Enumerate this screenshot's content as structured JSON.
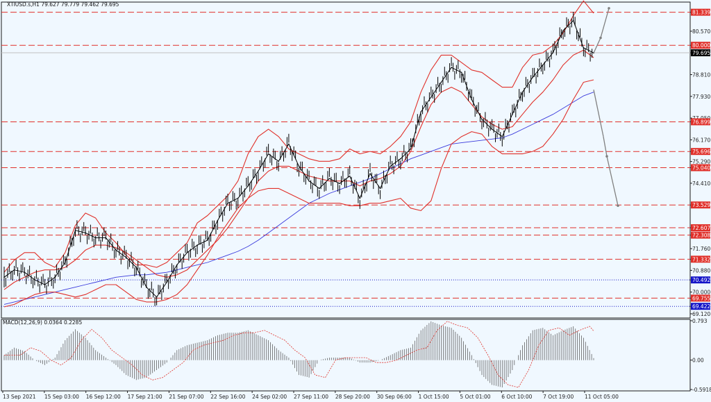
{
  "header": {
    "symbol_line": "XTIUSD.s,H1  79.627 79.779 79.462 79.695"
  },
  "macd": {
    "label": "MACD(12,26,9) 0.0364 0.2285",
    "ticks": [
      {
        "v": 0.793,
        "label": "0.793"
      },
      {
        "v": 0.0,
        "label": "0.00"
      },
      {
        "v": -0.5918,
        "label": "-0.5918"
      }
    ],
    "ylim": [
      -0.62,
      0.82
    ]
  },
  "price_axis": {
    "ylim": [
      68.95,
      81.75
    ],
    "ticks": [
      {
        "v": 81.339,
        "label": "81.339",
        "badge": "#e0302a"
      },
      {
        "v": 80.57,
        "label": "80.570"
      },
      {
        "v": 80.0,
        "label": "80.000",
        "badge": "#e0302a"
      },
      {
        "v": 79.695,
        "label": "79.695",
        "badge": "#000000"
      },
      {
        "v": 78.81,
        "label": "78.810"
      },
      {
        "v": 77.93,
        "label": "77.930"
      },
      {
        "v": 77.05,
        "label": "77.050"
      },
      {
        "v": 76.899,
        "label": "76.899",
        "badge": "#e0302a"
      },
      {
        "v": 76.17,
        "label": "76.170"
      },
      {
        "v": 75.696,
        "label": "75.696",
        "badge": "#e0302a"
      },
      {
        "v": 75.29,
        "label": "75.290"
      },
      {
        "v": 75.04,
        "label": "75.040",
        "badge": "#e0302a"
      },
      {
        "v": 74.41,
        "label": "74.410"
      },
      {
        "v": 73.529,
        "label": "73.529",
        "badge": "#e0302a"
      },
      {
        "v": 72.607,
        "label": "72.607",
        "badge": "#e0302a"
      },
      {
        "v": 72.308,
        "label": "72.308",
        "badge": "#e0302a"
      },
      {
        "v": 71.76,
        "label": "71.760"
      },
      {
        "v": 71.332,
        "label": "71.332",
        "badge": "#e0302a"
      },
      {
        "v": 70.88,
        "label": "70.880"
      },
      {
        "v": 70.492,
        "label": "70.492",
        "badge": "#1414c8"
      },
      {
        "v": 70.0,
        "label": "70.000"
      },
      {
        "v": 69.755,
        "label": "69.755",
        "badge": "#e0302a"
      },
      {
        "v": 69.422,
        "label": "69.422",
        "badge": "#1414c8"
      },
      {
        "v": 69.12,
        "label": "69.120"
      }
    ]
  },
  "chart_data": {
    "type": "line",
    "x_labels": [
      "13 Sep 2021",
      "15 Sep 03:00",
      "16 Sep 12:00",
      "17 Sep 21:00",
      "21 Sep 07:00",
      "22 Sep 16:00",
      "24 Sep 02:00",
      "27 Sep 11:00",
      "28 Sep 20:00",
      "30 Sep 06:00",
      "1 Oct 15:00",
      "5 Oct 01:00",
      "6 Oct 10:00",
      "7 Oct 19:00",
      "11 Oct 05:00"
    ],
    "price": [
      70.6,
      70.9,
      70.8,
      70.5,
      70.3,
      70.6,
      71.2,
      72.5,
      72.4,
      72.2,
      72.2,
      71.7,
      71.4,
      71.0,
      70.2,
      69.8,
      70.4,
      71.1,
      71.6,
      71.9,
      72.1,
      72.9,
      73.6,
      73.8,
      74.3,
      74.9,
      75.6,
      75.3,
      76.0,
      75.1,
      74.5,
      74.2,
      74.6,
      74.4,
      74.7,
      73.8,
      74.8,
      74.2,
      75.1,
      75.4,
      75.8,
      77.3,
      77.9,
      78.5,
      79.1,
      78.9,
      77.8,
      77.0,
      76.6,
      76.3,
      77.2,
      78.1,
      78.7,
      79.2,
      79.7,
      80.6,
      81.0,
      79.9,
      79.69
    ],
    "bb_upper": [
      70.8,
      71.3,
      71.6,
      71.6,
      71.2,
      71.0,
      71.6,
      72.7,
      73.2,
      73.0,
      72.4,
      72.0,
      71.5,
      71.1,
      71.1,
      71.0,
      71.2,
      71.6,
      72.0,
      72.8,
      73.1,
      73.5,
      73.9,
      74.5,
      75.6,
      76.3,
      76.6,
      76.3,
      75.8,
      75.6,
      75.4,
      75.3,
      75.3,
      75.4,
      75.8,
      75.6,
      75.7,
      75.6,
      75.9,
      76.3,
      76.9,
      78.1,
      79.0,
      79.6,
      79.6,
      79.3,
      79.0,
      78.9,
      78.6,
      78.3,
      78.3,
      79.1,
      79.6,
      79.7,
      80.0,
      80.5,
      81.2,
      81.8,
      81.3
    ],
    "bb_mid": [
      70.1,
      70.4,
      70.6,
      70.8,
      70.9,
      70.9,
      71.0,
      71.3,
      71.7,
      71.9,
      71.9,
      71.8,
      71.6,
      71.3,
      71.0,
      70.7,
      70.6,
      70.7,
      70.9,
      71.3,
      71.7,
      72.1,
      72.6,
      73.2,
      73.8,
      74.5,
      74.9,
      75.1,
      75.1,
      74.9,
      74.7,
      74.6,
      74.5,
      74.5,
      74.5,
      74.3,
      74.5,
      74.6,
      74.8,
      75.1,
      75.7,
      76.7,
      77.6,
      78.1,
      78.3,
      78.1,
      77.6,
      77.1,
      76.8,
      76.6,
      76.7,
      77.2,
      77.7,
      78.1,
      78.6,
      79.2,
      79.6,
      79.8,
      79.5
    ],
    "bb_lower": [
      69.4,
      69.5,
      69.7,
      69.9,
      70.0,
      70.0,
      69.9,
      69.8,
      69.9,
      70.1,
      70.3,
      70.3,
      70.0,
      69.7,
      69.6,
      69.6,
      69.7,
      69.9,
      70.3,
      70.9,
      71.5,
      72.2,
      72.8,
      73.4,
      73.8,
      74.1,
      74.2,
      74.2,
      74.0,
      73.8,
      73.6,
      73.6,
      73.6,
      73.6,
      73.5,
      73.5,
      73.6,
      73.6,
      73.7,
      73.8,
      73.4,
      73.3,
      73.7,
      75.0,
      76.0,
      76.3,
      76.5,
      76.4,
      75.9,
      75.6,
      75.6,
      75.6,
      75.7,
      75.9,
      76.4,
      77.0,
      77.8,
      78.5,
      78.6
    ],
    "ma": [
      69.5,
      69.6,
      69.7,
      69.8,
      69.9,
      70.0,
      70.1,
      70.2,
      70.3,
      70.4,
      70.5,
      70.6,
      70.65,
      70.7,
      70.7,
      70.75,
      70.8,
      70.9,
      71.0,
      71.1,
      71.2,
      71.35,
      71.5,
      71.65,
      71.85,
      72.1,
      72.4,
      72.7,
      73.0,
      73.3,
      73.6,
      73.8,
      74.0,
      74.15,
      74.3,
      74.45,
      74.6,
      74.8,
      75.0,
      75.2,
      75.4,
      75.55,
      75.7,
      75.85,
      76.0,
      76.05,
      76.1,
      76.15,
      76.2,
      76.25,
      76.4,
      76.6,
      76.8,
      77.0,
      77.2,
      77.45,
      77.7,
      77.95,
      78.1
    ],
    "macd_hist": [
      0.1,
      0.25,
      0.18,
      0.0,
      -0.1,
      0.05,
      0.4,
      0.62,
      0.45,
      0.2,
      0.05,
      -0.1,
      -0.3,
      -0.4,
      -0.35,
      -0.2,
      -0.05,
      0.2,
      0.3,
      0.35,
      0.4,
      0.5,
      0.55,
      0.55,
      0.6,
      0.5,
      0.4,
      0.2,
      0.05,
      -0.3,
      -0.35,
      0.0,
      0.05,
      0.05,
      0.05,
      -0.05,
      -0.05,
      0.0,
      0.1,
      0.2,
      0.25,
      0.6,
      0.78,
      0.7,
      0.65,
      0.45,
      0.1,
      -0.3,
      -0.5,
      -0.55,
      -0.2,
      0.3,
      0.6,
      0.65,
      0.5,
      0.6,
      0.68,
      0.45,
      0.04
    ],
    "levels": [
      {
        "value": 81.339,
        "style": "dash",
        "color": "#e0302a"
      },
      {
        "value": 80.0,
        "style": "dash",
        "color": "#e0302a"
      },
      {
        "value": 79.695,
        "style": "solid",
        "color": "#c0c0c0"
      },
      {
        "value": 76.899,
        "style": "dash",
        "color": "#e0302a"
      },
      {
        "value": 75.696,
        "style": "dash",
        "color": "#e0302a"
      },
      {
        "value": 75.04,
        "style": "dash",
        "color": "#e0302a"
      },
      {
        "value": 73.529,
        "style": "dash",
        "color": "#e0302a"
      },
      {
        "value": 72.607,
        "style": "dash",
        "color": "#e0302a"
      },
      {
        "value": 72.308,
        "style": "dash",
        "color": "#e0302a"
      },
      {
        "value": 71.332,
        "style": "dash",
        "color": "#e0302a"
      },
      {
        "value": 70.492,
        "style": "dot",
        "color": "#1414c8"
      },
      {
        "value": 69.755,
        "style": "dash",
        "color": "#e0302a"
      },
      {
        "value": 69.422,
        "style": "dot",
        "color": "#1414c8"
      }
    ],
    "colors": {
      "candles": "#000000",
      "bollinger": "#e0302a",
      "moving_average": "#3a3adc",
      "levels": "#e0302a",
      "projection": "#808080",
      "macd_signal": "#e0302a"
    }
  }
}
